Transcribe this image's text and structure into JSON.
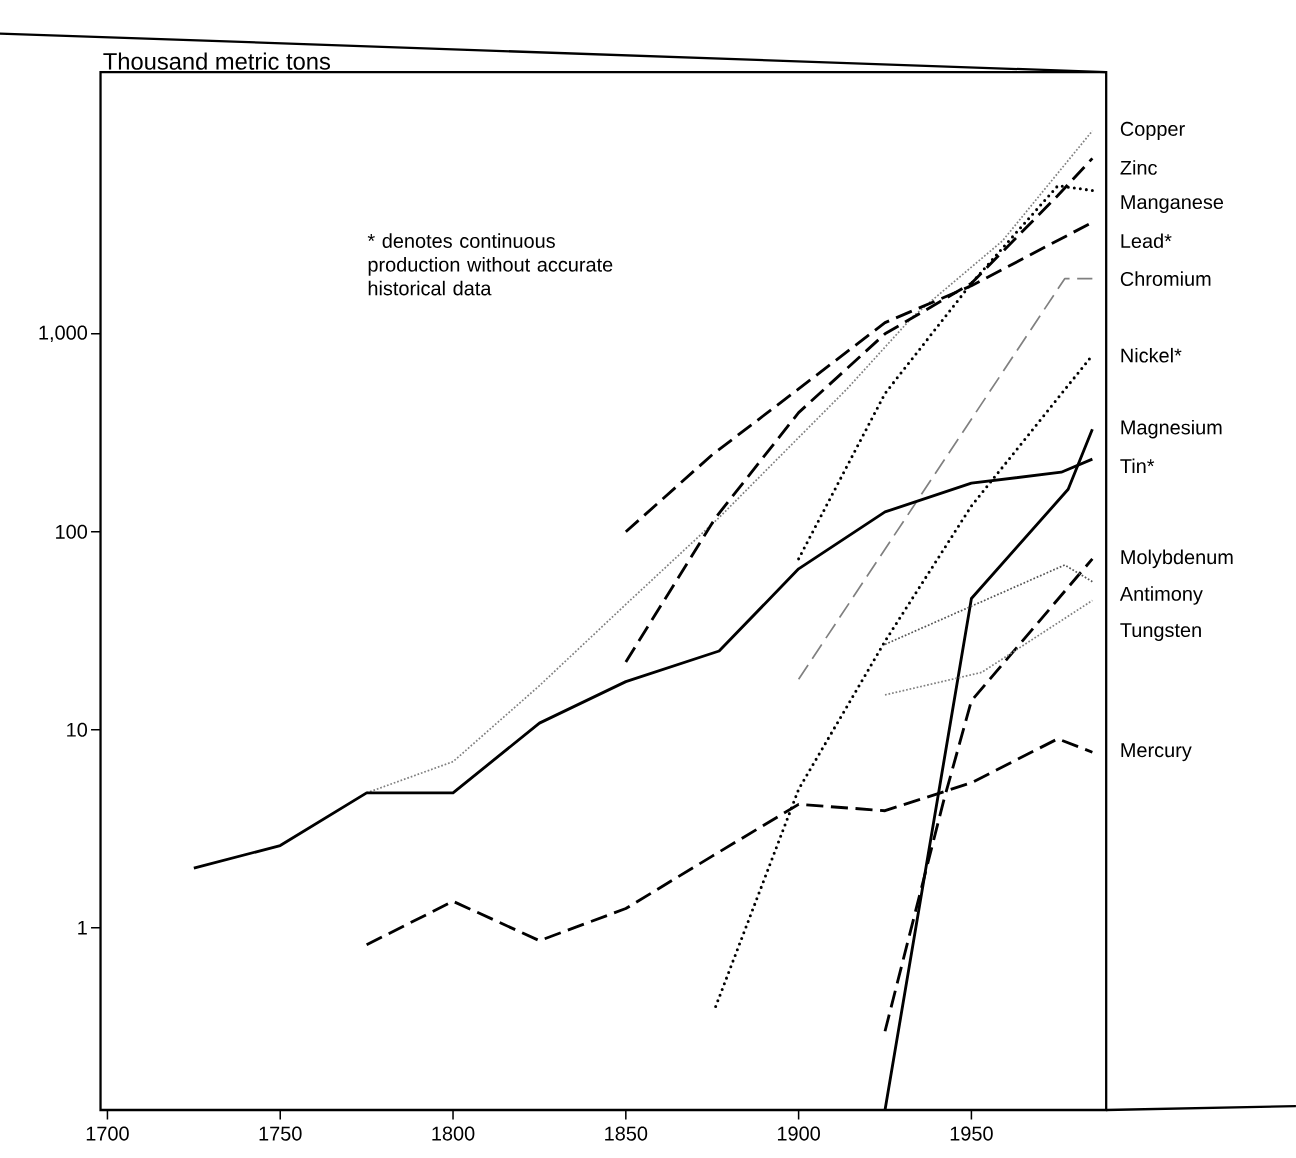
{
  "chart_data": {
    "type": "line",
    "ylabel": "Thousand metric tons",
    "annotations": [
      "* denotes continuous production without accurate historical data"
    ],
    "log": "y",
    "grid": false,
    "legend": false,
    "xlim": [
      1698,
      1989
    ],
    "ylim": [
      0.12,
      21000
    ],
    "xticks": [
      1700,
      1750,
      1800,
      1850,
      1900,
      1950
    ],
    "yticks": [
      1,
      10,
      100,
      {
        "value": 1000,
        "label": "1,000"
      }
    ],
    "series": [
      {
        "name": "Copper",
        "color": "#808080",
        "line_style": "dotted",
        "x": [
          1775,
          1800,
          1825,
          1850,
          1877,
          1914,
          1933,
          1959,
          1985
        ],
        "values": [
          4.8,
          6.9,
          16.7,
          43,
          118,
          527,
          1220,
          2950,
          10600
        ]
      },
      {
        "name": "Zinc",
        "color": "#000000",
        "line_style": "dashed",
        "x": [
          1850,
          1876,
          1900,
          1925,
          1950,
          1975,
          1985
        ],
        "values": [
          22,
          118,
          400,
          1000,
          1800,
          5000,
          7700
        ]
      },
      {
        "name": "Manganese",
        "color": "#000000",
        "line_style": "dotted",
        "x": [
          1900,
          1925,
          1950,
          1975,
          1985
        ],
        "values": [
          73,
          500,
          1800,
          5600,
          5300
        ]
      },
      {
        "name": "Lead*",
        "color": "#000000",
        "line_style": "dashed",
        "x": [
          1850,
          1875,
          1900,
          1925,
          1950,
          1985
        ],
        "values": [
          100,
          245,
          527,
          1140,
          1750,
          3660
        ]
      },
      {
        "name": "Chromium",
        "color": "#808080",
        "line_style": "dashed",
        "x": [
          1900,
          1977,
          1985
        ],
        "values": [
          18,
          1900,
          1900
        ]
      },
      {
        "name": "Nickel*",
        "color": "#000000",
        "line_style": "dotted",
        "x": [
          1876,
          1900,
          1925,
          1950,
          1985
        ],
        "values": [
          0.4,
          5.0,
          28,
          135,
          780
        ]
      },
      {
        "name": "Magnesium",
        "color": "#000000",
        "line_style": "solid",
        "x": [
          1925,
          1950,
          1978,
          1985
        ],
        "values": [
          0.12,
          46,
          164,
          330
        ]
      },
      {
        "name": "Tin*",
        "color": "#000000",
        "line_style": "solid",
        "x": [
          1725,
          1750,
          1775,
          1800,
          1825,
          1850,
          1877,
          1900,
          1925,
          1950,
          1976,
          1985
        ],
        "values": [
          2.0,
          2.6,
          4.8,
          4.8,
          10.8,
          17.5,
          25,
          65,
          126,
          176,
          200,
          233
        ]
      },
      {
        "name": "Molybdenum",
        "color": "#000000",
        "line_style": "dashed",
        "x": [
          1925,
          1942,
          1950,
          1985
        ],
        "values": [
          0.3,
          4.4,
          14,
          73
        ]
      },
      {
        "name": "Antimony",
        "color": "#555555",
        "line_style": "dotted",
        "x": [
          1925,
          1977,
          1985
        ],
        "values": [
          27,
          68,
          56
        ]
      },
      {
        "name": "Tungsten",
        "color": "#808080",
        "line_style": "dotted",
        "x": [
          1925,
          1953,
          1985
        ],
        "values": [
          15,
          19.5,
          45
        ]
      },
      {
        "name": "Mercury",
        "color": "#000000",
        "line_style": "dashed",
        "x": [
          1775,
          1800,
          1825,
          1850,
          1875,
          1900,
          1925,
          1950,
          1975,
          1985
        ],
        "values": [
          0.82,
          1.36,
          0.86,
          1.25,
          2.3,
          4.2,
          3.9,
          5.4,
          9.0,
          7.7
        ]
      }
    ]
  }
}
